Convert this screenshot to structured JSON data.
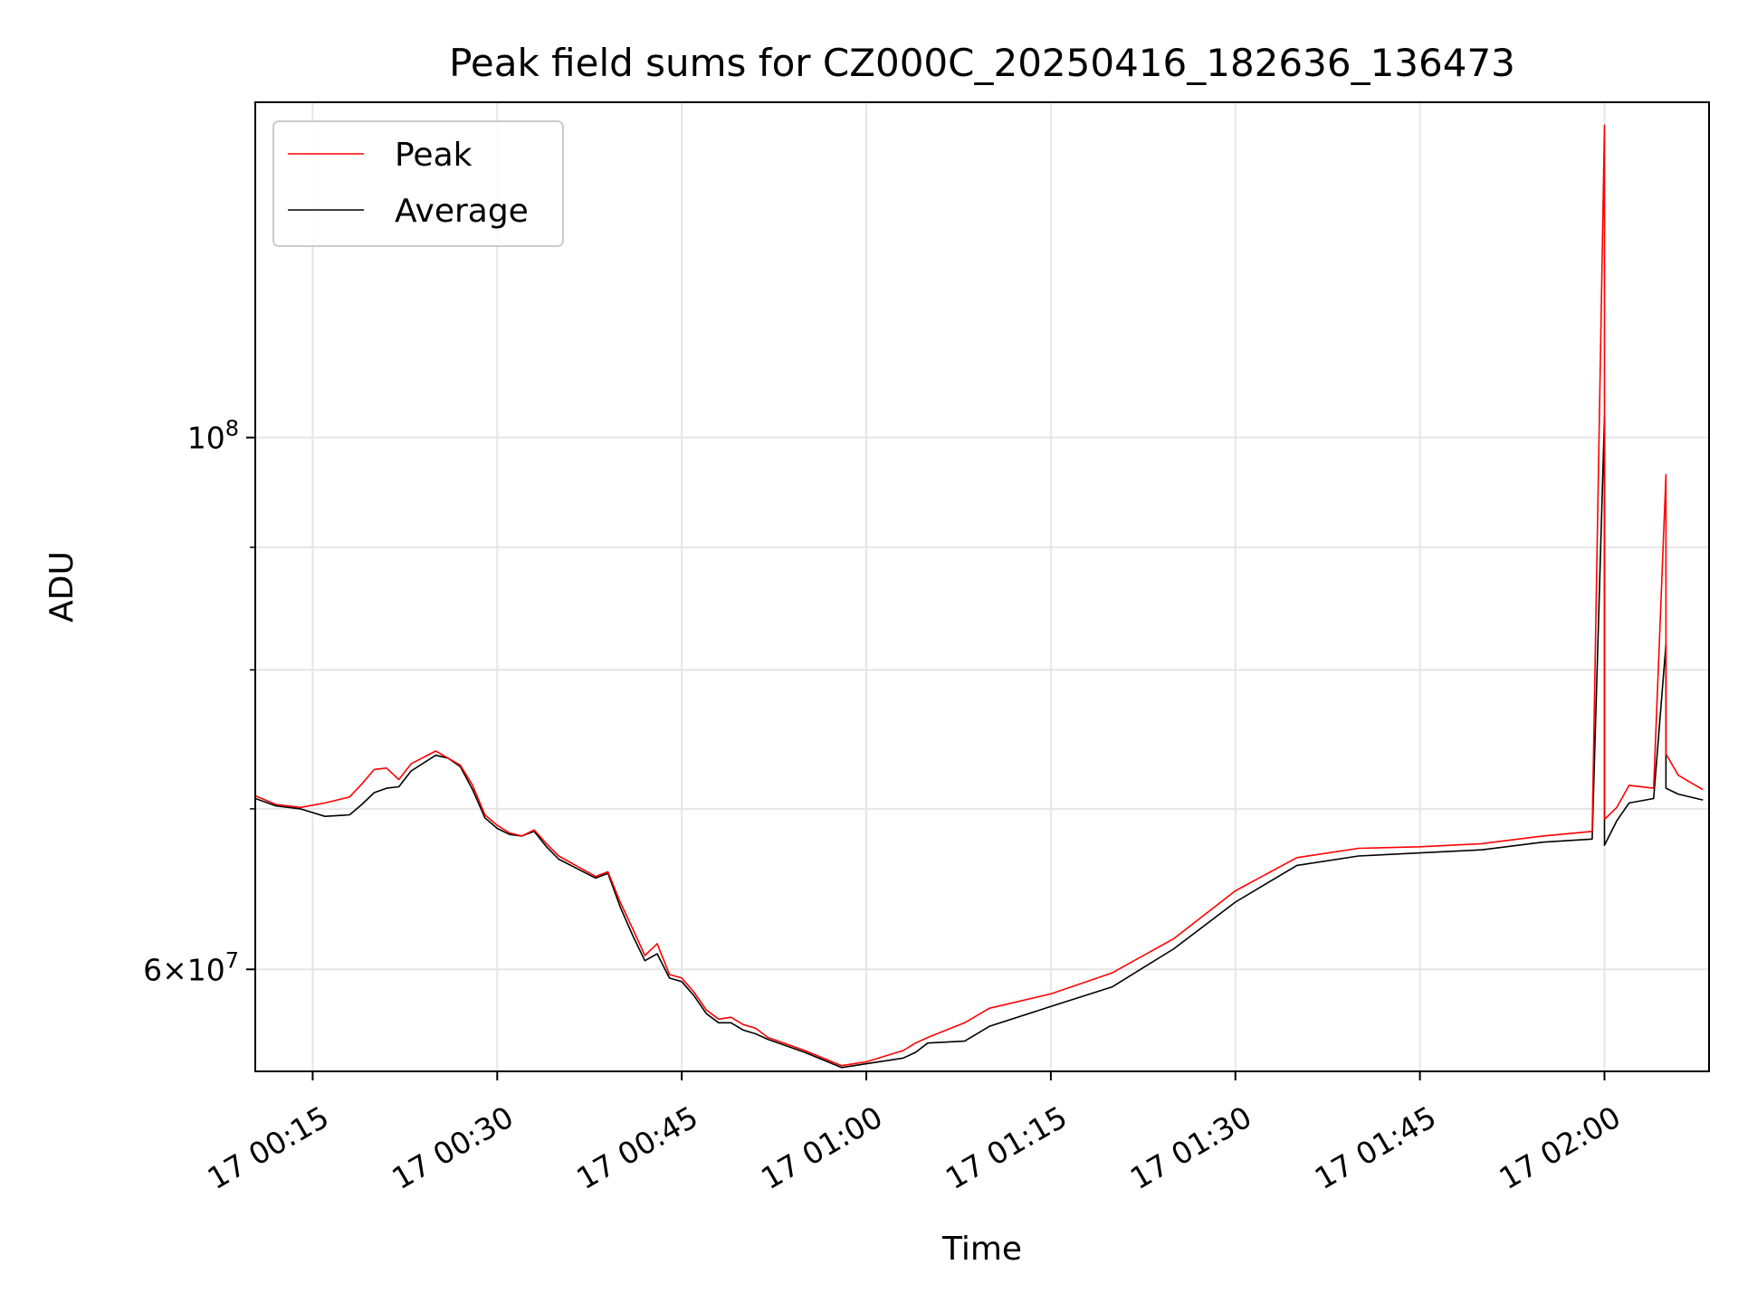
{
  "chart_data": {
    "type": "line",
    "title": "Peak field sums for CZ000C_20250416_182636_136473",
    "xlabel": "Time",
    "ylabel": "ADU",
    "x_unit": "time",
    "xlim": [
      "17 00:10:20",
      "17 02:08:30"
    ],
    "ylim": [
      54400000,
      138000000
    ],
    "yscale": "log",
    "grid": true,
    "legend_placement": "upper-left",
    "x_ticks": [
      "17 00:15",
      "17 00:30",
      "17 00:45",
      "17 01:00",
      "17 01:15",
      "17 01:30",
      "17 01:45",
      "17 02:00"
    ],
    "x_tick_minutes": [
      15,
      30,
      45,
      60,
      75,
      90,
      105,
      120
    ],
    "y_major_ticks": [
      {
        "value": 100000000,
        "label": "10^8"
      },
      {
        "value": 60000000,
        "label": "6×10^7"
      }
    ],
    "y_minor_ticks": [
      70000000,
      80000000,
      90000000
    ],
    "series": [
      {
        "name": "Peak",
        "color": "#ff0000",
        "x": [
          "17 00:10",
          "17 00:12",
          "17 00:14",
          "17 00:16",
          "17 00:18",
          "17 00:19",
          "17 00:20",
          "17 00:21",
          "17 00:22",
          "17 00:23",
          "17 00:25",
          "17 00:26",
          "17 00:27",
          "17 00:28",
          "17 00:29",
          "17 00:30",
          "17 00:31",
          "17 00:32",
          "17 00:33",
          "17 00:34",
          "17 00:35",
          "17 00:38",
          "17 00:39",
          "17 00:40",
          "17 00:41",
          "17 00:42",
          "17 00:43",
          "17 00:44",
          "17 00:45",
          "17 00:46",
          "17 00:47",
          "17 00:48",
          "17 00:49",
          "17 00:50",
          "17 00:51",
          "17 00:52",
          "17 00:55",
          "17 00:58",
          "17 00:59",
          "17 01:00",
          "17 01:02",
          "17 01:03",
          "17 01:04",
          "17 01:05",
          "17 01:08",
          "17 01:10",
          "17 01:15",
          "17 01:20",
          "17 01:25",
          "17 01:30",
          "17 01:35",
          "17 01:40",
          "17 01:45",
          "17 01:50",
          "17 01:55",
          "17 01:59",
          "17 02:00",
          "17 02:00",
          "17 02:01",
          "17 02:02",
          "17 02:04",
          "17 02:05",
          "17 02:05",
          "17 02:06",
          "17 02:08"
        ],
        "values": [
          71000000,
          70300000,
          70100000,
          70400000,
          70800000,
          71700000,
          72700000,
          72800000,
          72000000,
          73100000,
          74000000,
          73500000,
          73000000,
          71600000,
          69600000,
          68900000,
          68400000,
          68200000,
          68600000,
          67700000,
          66900000,
          65600000,
          65900000,
          64000000,
          62400000,
          60800000,
          61500000,
          59700000,
          59500000,
          58700000,
          57700000,
          57200000,
          57300000,
          56900000,
          56700000,
          56200000,
          55500000,
          54700000,
          54800000,
          54900000,
          55300000,
          55500000,
          55900000,
          56200000,
          57000000,
          57800000,
          58600000,
          59800000,
          61800000,
          64700000,
          66800000,
          67400000,
          67500000,
          67700000,
          68200000,
          68500000,
          135000000,
          69300000,
          70100000,
          71600000,
          71400000,
          96500000,
          73800000,
          72300000,
          71300000
        ]
      },
      {
        "name": "Average",
        "color": "#000000",
        "x": [
          "17 00:10",
          "17 00:12",
          "17 00:14",
          "17 00:16",
          "17 00:18",
          "17 00:19",
          "17 00:20",
          "17 00:21",
          "17 00:22",
          "17 00:23",
          "17 00:25",
          "17 00:26",
          "17 00:27",
          "17 00:28",
          "17 00:29",
          "17 00:30",
          "17 00:31",
          "17 00:32",
          "17 00:33",
          "17 00:34",
          "17 00:35",
          "17 00:38",
          "17 00:39",
          "17 00:40",
          "17 00:41",
          "17 00:42",
          "17 00:43",
          "17 00:44",
          "17 00:45",
          "17 00:46",
          "17 00:47",
          "17 00:48",
          "17 00:49",
          "17 00:50",
          "17 00:51",
          "17 00:52",
          "17 00:55",
          "17 00:58",
          "17 00:59",
          "17 01:00",
          "17 01:02",
          "17 01:03",
          "17 01:04",
          "17 01:05",
          "17 01:08",
          "17 01:10",
          "17 01:15",
          "17 01:20",
          "17 01:25",
          "17 01:30",
          "17 01:35",
          "17 01:40",
          "17 01:45",
          "17 01:50",
          "17 01:55",
          "17 01:59",
          "17 02:00",
          "17 02:00",
          "17 02:01",
          "17 02:02",
          "17 02:04",
          "17 02:05",
          "17 02:05",
          "17 02:06",
          "17 02:08"
        ],
        "values": [
          70800000,
          70200000,
          70000000,
          69500000,
          69600000,
          70300000,
          71100000,
          71400000,
          71500000,
          72600000,
          73700000,
          73500000,
          72900000,
          71300000,
          69400000,
          68700000,
          68300000,
          68200000,
          68500000,
          67500000,
          66700000,
          65500000,
          65800000,
          63700000,
          62000000,
          60500000,
          60900000,
          59500000,
          59300000,
          58500000,
          57500000,
          57000000,
          57000000,
          56600000,
          56400000,
          56100000,
          55400000,
          54600000,
          54700000,
          54800000,
          55000000,
          55100000,
          55400000,
          55900000,
          56000000,
          56800000,
          57900000,
          59000000,
          61200000,
          64000000,
          66300000,
          66900000,
          67100000,
          67300000,
          67800000,
          68000000,
          102000000,
          67600000,
          69200000,
          70400000,
          70700000,
          82000000,
          71400000,
          71000000,
          70600000
        ]
      }
    ]
  }
}
